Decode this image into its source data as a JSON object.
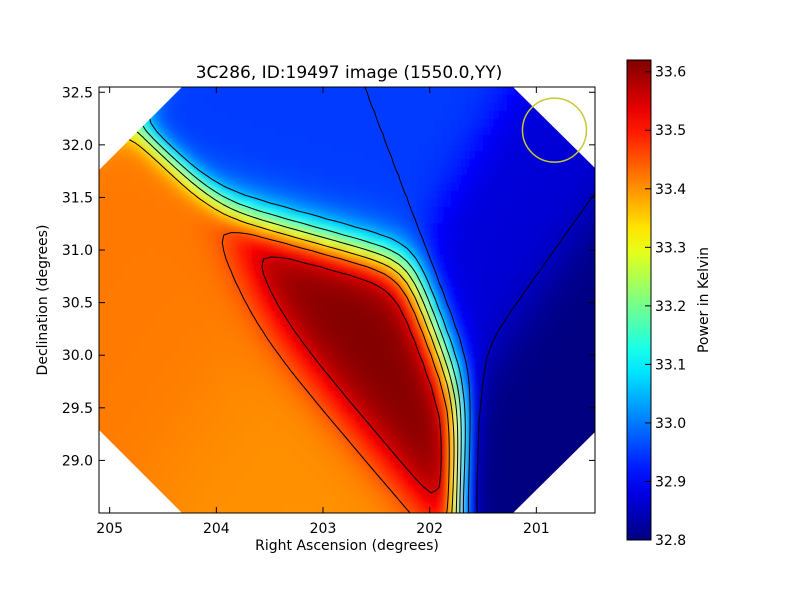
{
  "chart_data": {
    "type": "heatmap",
    "title": "3C286, ID:19497 image (1550.0,YY)",
    "xlabel": "Right Ascension (degrees)",
    "ylabel": "Declination (degrees)",
    "xlim": [
      205.1,
      200.45
    ],
    "ylim": [
      28.5,
      32.55
    ],
    "x_ticks": [
      205,
      204,
      203,
      202,
      201
    ],
    "y_ticks": [
      29.0,
      29.5,
      30.0,
      30.5,
      31.0,
      31.5,
      32.0,
      32.5
    ],
    "x_tick_labels": [
      "205",
      "204",
      "203",
      "202",
      "201"
    ],
    "y_tick_labels": [
      "29.0",
      "29.5",
      "30.0",
      "30.5",
      "31.0",
      "31.5",
      "32.0",
      "32.5"
    ],
    "colorbar": {
      "label": "Power in Kelvin",
      "colormap": "jet",
      "range": [
        32.8,
        33.62
      ],
      "ticks": [
        32.8,
        32.9,
        33.0,
        33.1,
        33.2,
        33.3,
        33.4,
        33.5,
        33.6
      ],
      "tick_labels": [
        "32.8",
        "32.9",
        "33.0",
        "33.1",
        "33.2",
        "33.3",
        "33.4",
        "33.5",
        "33.6"
      ]
    },
    "field_features": [
      {
        "feature": "maximum",
        "ra": 202.83,
        "dec": 30.4,
        "value": 33.62
      },
      {
        "feature": "warm ridge",
        "ra": 204.1,
        "dec": 29.92,
        "value": 33.42
      },
      {
        "feature": "warm ridge",
        "ra": 203.7,
        "dec": 29.65,
        "value": 33.4
      },
      {
        "feature": "minimum",
        "ra": 200.5,
        "dec": 30.3,
        "value": 32.8
      },
      {
        "feature": "cool region",
        "ra": 201.4,
        "dec": 30.95,
        "value": 32.87
      },
      {
        "feature": "cool region",
        "ra": 202.5,
        "dec": 31.6,
        "value": 32.95
      }
    ],
    "contours": true,
    "beam_marker": {
      "ra": 200.83,
      "dec": 32.14,
      "color": "#c8c832"
    }
  }
}
